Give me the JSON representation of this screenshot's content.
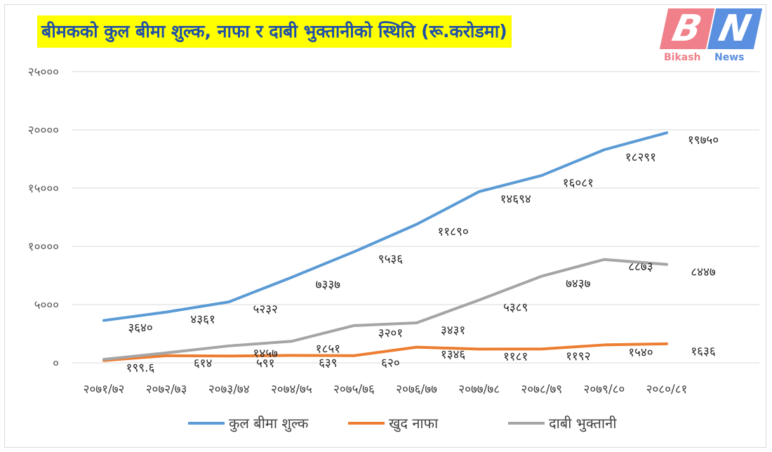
{
  "title": "बीमकको कुल बीमा शुल्क, नाफा र दाबी भुक्तानीको स्थिति (रू.करोडमा)",
  "logo": {
    "b": "B",
    "n": "N",
    "word1": "Bikash",
    "word2": "News"
  },
  "chart_data": {
    "type": "line",
    "title": "बीमकको कुल बीमा शुल्क, नाफा र दाबी भुक्तानीको स्थिति (रू.करोडमा)",
    "categories": [
      "२०७१/७२",
      "२०७२/७३",
      "२०७३/७४",
      "२०७४/७५",
      "२०७५/७६",
      "२०७६/७७",
      "२०७७/७८",
      "२०७८/७९",
      "२०७९/८०",
      "२०८०/८१"
    ],
    "ylim": [
      0,
      25000
    ],
    "yticks": [
      0,
      5000,
      10000,
      15000,
      20000,
      25000
    ],
    "ytick_labels": [
      "०",
      "५०००",
      "१००००",
      "१५०००",
      "२००००",
      "२५०००"
    ],
    "grid": true,
    "legend_position": "bottom",
    "series": [
      {
        "name": "कुल बीमा शुल्क",
        "color": "#5b9bd5",
        "values": [
          3640,
          4361,
          5232,
          7337,
          9536,
          11890,
          14694,
          16081,
          18291,
          19750
        ],
        "labels": [
          "३६४०",
          "४३६१",
          "५२३२",
          "७३३७",
          "९५३६",
          "११८९०",
          "१४६९४",
          "१६०८१",
          "१८२९१",
          "१९७५०"
        ]
      },
      {
        "name": "खुद नाफा",
        "color": "#ed7d31",
        "values": [
          199.6,
          614,
          591,
          639,
          620,
          1346,
          1181,
          1192,
          1540,
          1636
        ],
        "labels": [
          "१९९.६",
          "६१४",
          "५९१",
          "६३९",
          "६२०",
          "१३४६",
          "११८१",
          "११९२",
          "१५४०",
          "१६३६"
        ]
      },
      {
        "name": "दाबी भुक्तानी",
        "color": "#a5a5a5",
        "values": [
          300,
          860,
          1457,
          1851,
          3201,
          3431,
          5389,
          7437,
          8873,
          8447
        ],
        "labels": [
          "",
          "",
          "१४५७",
          "१८५१",
          "३२०१",
          "३४३१",
          "५३८९",
          "७४३७",
          "८८७३",
          "८४४७"
        ]
      }
    ]
  }
}
